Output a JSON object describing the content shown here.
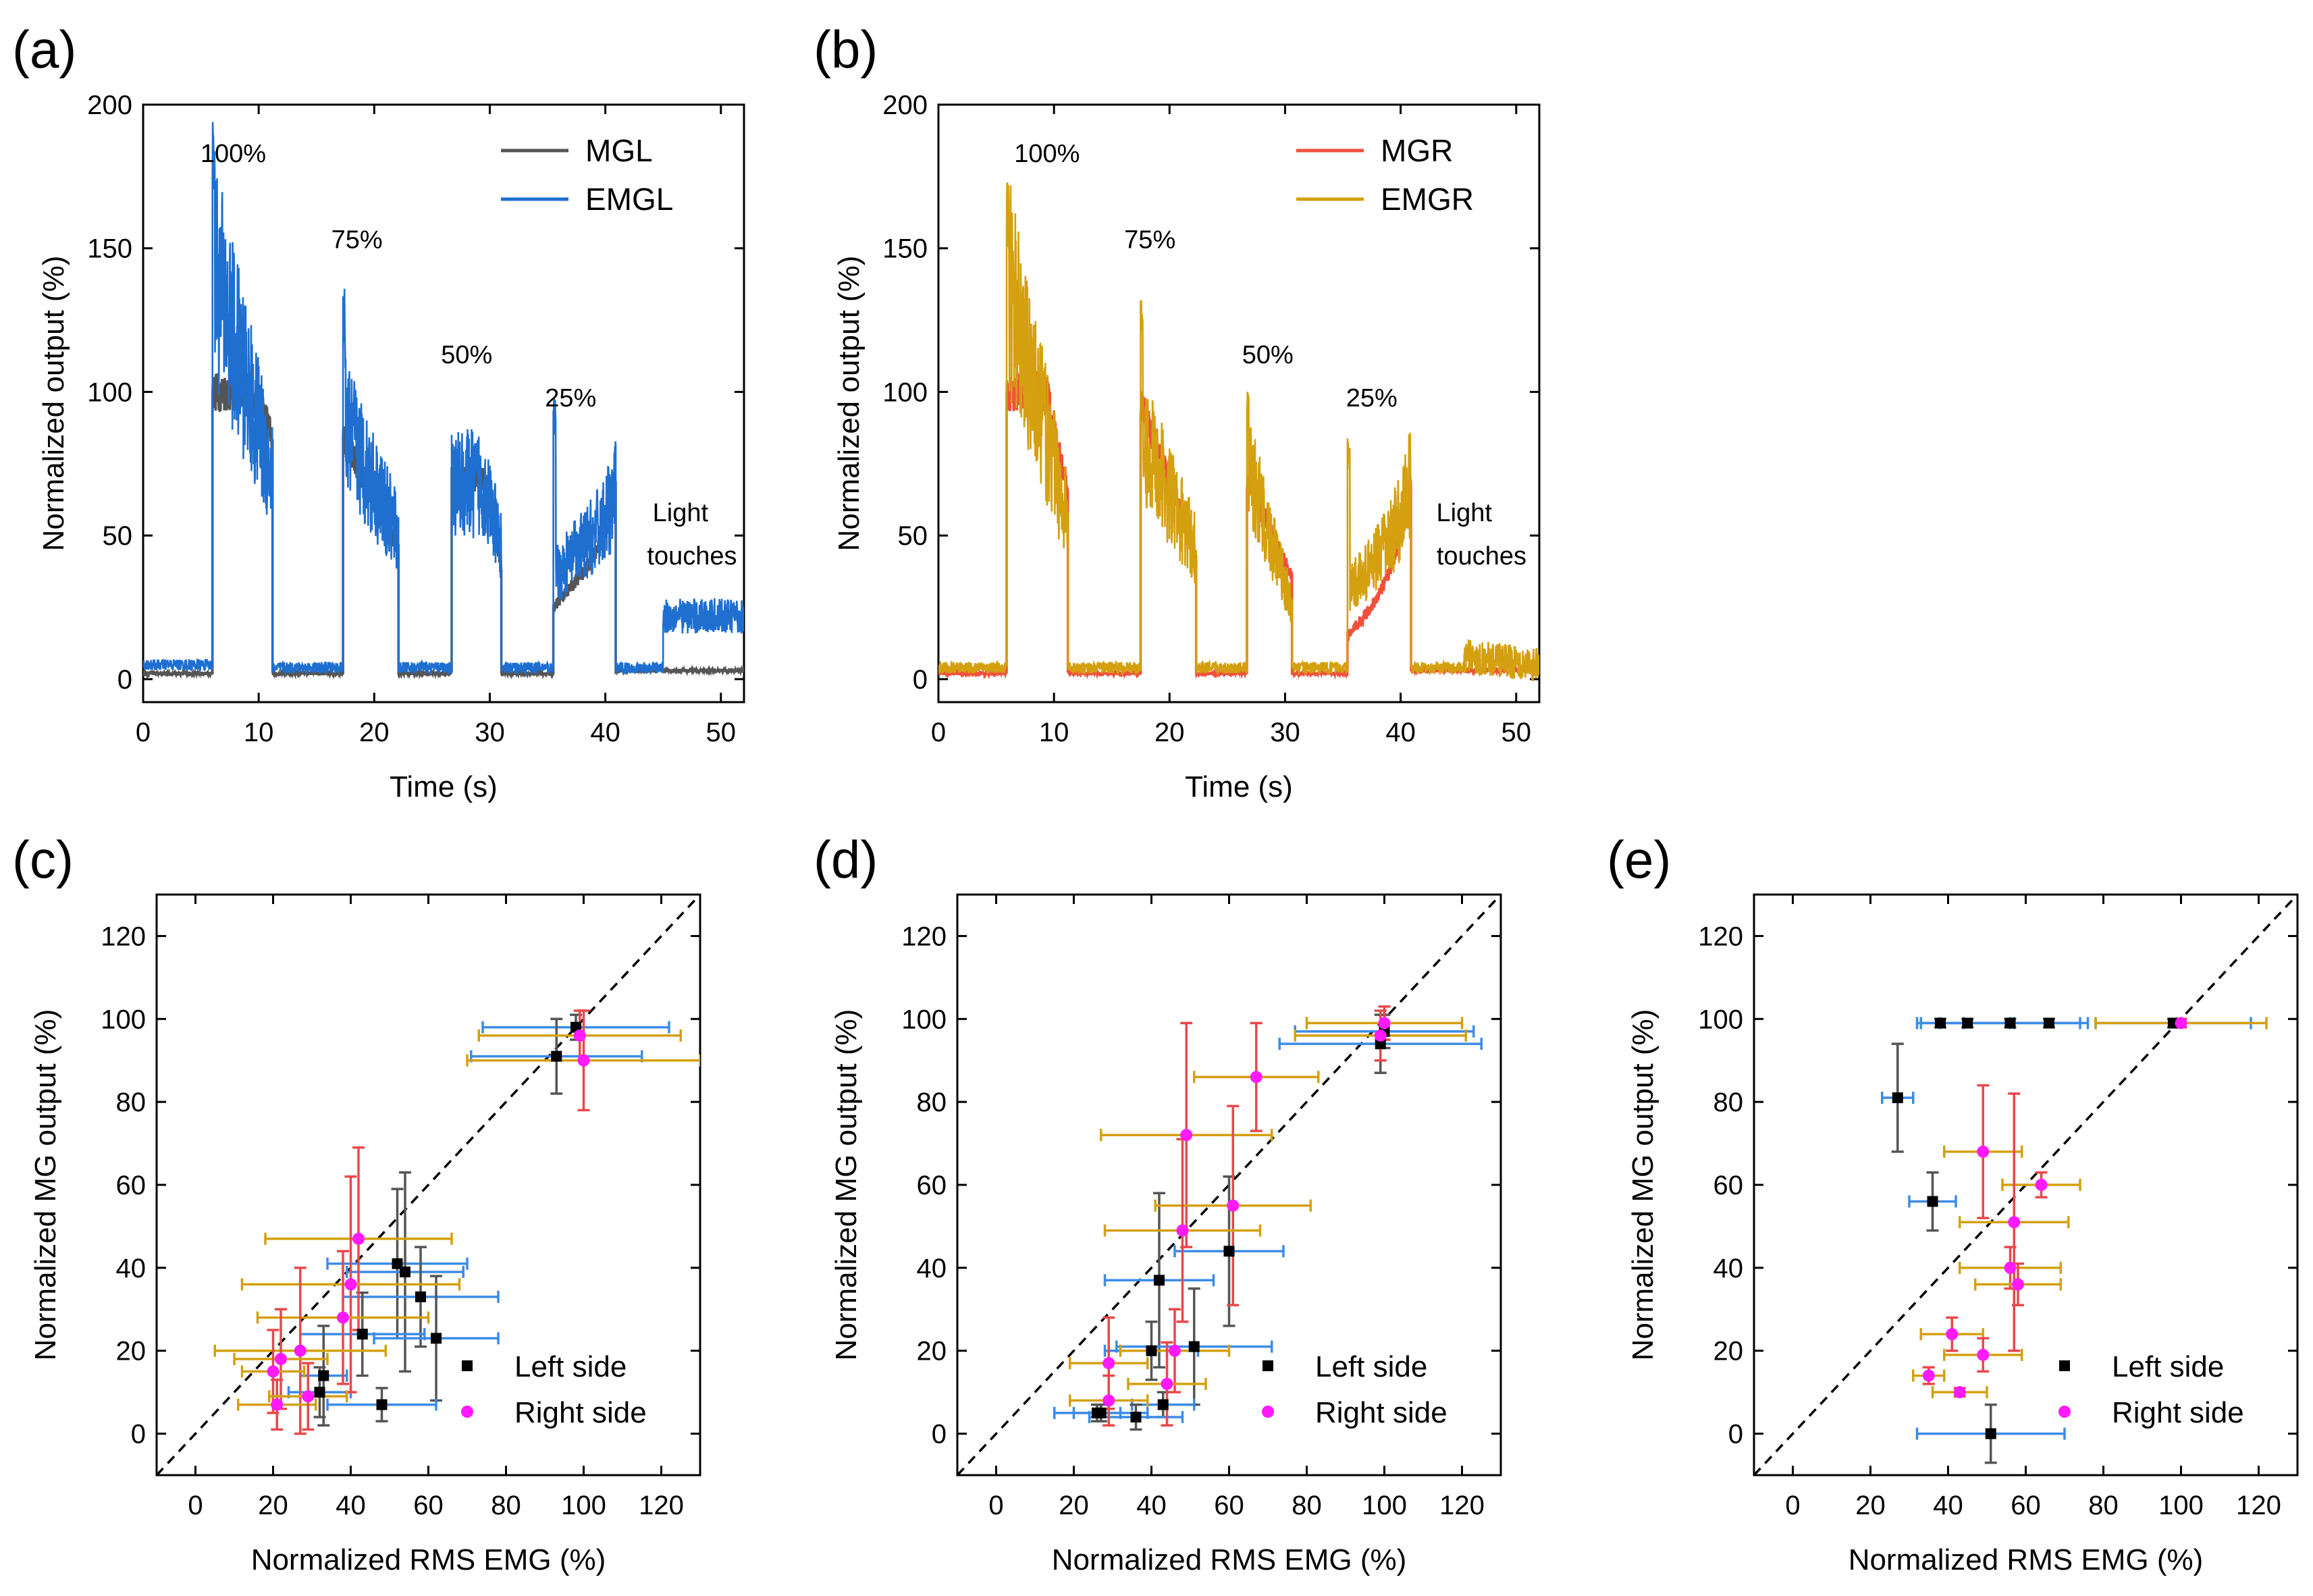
{
  "chart_data": [
    {
      "id": "a",
      "panel_label": "(a)",
      "type": "line",
      "xlabel": "Time (s)",
      "ylabel": "Normalized output (%)",
      "xlim": [
        0,
        52
      ],
      "ylim": [
        -8,
        200
      ],
      "xticks": [
        0,
        10,
        20,
        30,
        40,
        50
      ],
      "yticks": [
        0,
        50,
        100,
        150,
        200
      ],
      "legend_position": "top-right",
      "series": [
        {
          "name": "MGL",
          "color": "#555555",
          "segments": [
            {
              "t0": 0,
              "t1": 6,
              "level": 2
            },
            {
              "t0": 6,
              "t1": 11.2,
              "level": 100,
              "shape": "plateau",
              "end": 85
            },
            {
              "t0": 11.2,
              "t1": 17.3,
              "level": 2
            },
            {
              "t0": 17.3,
              "t1": 22.1,
              "level": 85,
              "shape": "decay",
              "end": 45
            },
            {
              "t0": 22.1,
              "t1": 26.7,
              "level": 2
            },
            {
              "t0": 26.7,
              "t1": 31,
              "level": 70,
              "shape": "plateau",
              "end": 40
            },
            {
              "t0": 31,
              "t1": 35.5,
              "level": 2
            },
            {
              "t0": 35.5,
              "t1": 40.9,
              "level": 25,
              "shape": "bowl",
              "end": 65
            },
            {
              "t0": 40.9,
              "t1": 52,
              "level": 3
            }
          ]
        },
        {
          "name": "EMGL",
          "color": "#1f6fd1",
          "segments": [
            {
              "t0": 0,
              "t1": 6,
              "level": 5
            },
            {
              "t0": 6,
              "t1": 11.2,
              "level": 145,
              "shape": "decay",
              "end": 70,
              "peak": 200
            },
            {
              "t0": 11.2,
              "t1": 17.3,
              "level": 4
            },
            {
              "t0": 17.3,
              "t1": 22.1,
              "level": 90,
              "shape": "decay",
              "end": 50,
              "peak": 136
            },
            {
              "t0": 22.1,
              "t1": 26.7,
              "level": 4
            },
            {
              "t0": 26.7,
              "t1": 31,
              "level": 68,
              "shape": "plateau",
              "end": 45
            },
            {
              "t0": 31,
              "t1": 35.5,
              "level": 4
            },
            {
              "t0": 35.5,
              "t1": 40.9,
              "level": 35,
              "shape": "bowl",
              "end": 65,
              "peak": 98
            },
            {
              "t0": 40.9,
              "t1": 45,
              "level": 4
            },
            {
              "t0": 45,
              "t1": 52,
              "level": 22,
              "shape": "noisy",
              "end": 22
            }
          ]
        }
      ],
      "annotations": [
        {
          "text": "100%",
          "x": 7.8,
          "y": 180
        },
        {
          "text": "75%",
          "x": 18.5,
          "y": 150
        },
        {
          "text": "50%",
          "x": 28,
          "y": 110
        },
        {
          "text": "25%",
          "x": 37,
          "y": 95
        },
        {
          "text": "Light",
          "x": 46.5,
          "y": 55
        },
        {
          "text": "touches",
          "x": 47.5,
          "y": 40
        }
      ]
    },
    {
      "id": "b",
      "panel_label": "(b)",
      "type": "line",
      "xlabel": "Time (s)",
      "ylabel": "Normalized output (%)",
      "xlim": [
        0,
        52
      ],
      "ylim": [
        -8,
        200
      ],
      "xticks": [
        0,
        10,
        20,
        30,
        40,
        50
      ],
      "yticks": [
        0,
        50,
        100,
        150,
        200
      ],
      "legend_position": "top-right",
      "series": [
        {
          "name": "MGR",
          "color": "#f0503c",
          "segments": [
            {
              "t0": 0,
              "t1": 5.9,
              "level": 2
            },
            {
              "t0": 5.9,
              "t1": 11.2,
              "level": 100,
              "shape": "plateau",
              "end": 65
            },
            {
              "t0": 11.2,
              "t1": 17.5,
              "level": 2
            },
            {
              "t0": 17.5,
              "t1": 22.3,
              "level": 95,
              "shape": "decay",
              "end": 45
            },
            {
              "t0": 22.3,
              "t1": 26.7,
              "level": 2
            },
            {
              "t0": 26.7,
              "t1": 30.6,
              "level": 70,
              "shape": "decay",
              "end": 35
            },
            {
              "t0": 30.6,
              "t1": 35.4,
              "level": 2
            },
            {
              "t0": 35.4,
              "t1": 40.9,
              "level": 15,
              "shape": "bowl",
              "end": 70
            },
            {
              "t0": 40.9,
              "t1": 52,
              "level": 3
            }
          ]
        },
        {
          "name": "EMGR",
          "color": "#d4a010",
          "segments": [
            {
              "t0": 0,
              "t1": 5.9,
              "level": 4
            },
            {
              "t0": 5.9,
              "t1": 11.2,
              "level": 140,
              "shape": "decay",
              "end": 55,
              "peak": 175
            },
            {
              "t0": 11.2,
              "t1": 17.5,
              "level": 4
            },
            {
              "t0": 17.5,
              "t1": 22.3,
              "level": 85,
              "shape": "decay",
              "end": 45,
              "peak": 141
            },
            {
              "t0": 22.3,
              "t1": 26.7,
              "level": 4
            },
            {
              "t0": 26.7,
              "t1": 30.6,
              "level": 75,
              "shape": "decay",
              "end": 25,
              "peak": 103
            },
            {
              "t0": 30.6,
              "t1": 35.4,
              "level": 4
            },
            {
              "t0": 35.4,
              "t1": 40.9,
              "level": 30,
              "shape": "bowl",
              "end": 70,
              "peak": 84
            },
            {
              "t0": 40.9,
              "t1": 45.5,
              "level": 4
            },
            {
              "t0": 45.5,
              "t1": 52,
              "level": 8,
              "shape": "noisy",
              "end": 5
            }
          ]
        }
      ],
      "annotations": [
        {
          "text": "100%",
          "x": 9.4,
          "y": 180
        },
        {
          "text": "75%",
          "x": 18.3,
          "y": 150
        },
        {
          "text": "50%",
          "x": 28.5,
          "y": 110
        },
        {
          "text": "25%",
          "x": 37.5,
          "y": 95
        },
        {
          "text": "Light",
          "x": 45.5,
          "y": 55
        },
        {
          "text": "touches",
          "x": 47,
          "y": 40
        }
      ]
    },
    {
      "id": "c",
      "panel_label": "(c)",
      "type": "scatter",
      "xlabel": "Normalized RMS EMG (%)",
      "ylabel": "Normalized MG output (%)",
      "xlim": [
        -10,
        130
      ],
      "ylim": [
        -10,
        130
      ],
      "xticks": [
        0,
        20,
        40,
        60,
        80,
        100,
        120
      ],
      "yticks": [
        0,
        20,
        40,
        60,
        80,
        100,
        120
      ],
      "identity_line": true,
      "legend_position": "bottom-right",
      "series": [
        {
          "name": "Left side",
          "color": "#000000",
          "marker": "square",
          "ecolor": "#555555",
          "xecolor": "#3c8ce6",
          "points": [
            {
              "x": 98,
              "y": 98,
              "xerr": 24,
              "yerr": 3
            },
            {
              "x": 93,
              "y": 91,
              "xerr": 22,
              "yerr": 9
            },
            {
              "x": 52,
              "y": 41,
              "xerr": 18,
              "yerr": 18
            },
            {
              "x": 54,
              "y": 39,
              "xerr": 15,
              "yerr": 24
            },
            {
              "x": 58,
              "y": 33,
              "xerr": 20,
              "yerr": 12
            },
            {
              "x": 62,
              "y": 23,
              "xerr": 16,
              "yerr": 15
            },
            {
              "x": 43,
              "y": 24,
              "xerr": 16,
              "yerr": 10
            },
            {
              "x": 33,
              "y": 14,
              "xerr": 6,
              "yerr": 12
            },
            {
              "x": 32,
              "y": 10,
              "xerr": 8,
              "yerr": 6
            },
            {
              "x": 48,
              "y": 7,
              "xerr": 14,
              "yerr": 4
            }
          ]
        },
        {
          "name": "Right side",
          "color": "#ff1aff",
          "marker": "circle",
          "ecolor": "#e8484c",
          "xecolor": "#d4a010",
          "points": [
            {
              "x": 99,
              "y": 96,
              "xerr": 26,
              "yerr": 6
            },
            {
              "x": 100,
              "y": 90,
              "xerr": 30,
              "yerr": 12
            },
            {
              "x": 42,
              "y": 47,
              "xerr": 24,
              "yerr": 22
            },
            {
              "x": 40,
              "y": 36,
              "xerr": 28,
              "yerr": 26
            },
            {
              "x": 38,
              "y": 28,
              "xerr": 22,
              "yerr": 16
            },
            {
              "x": 27,
              "y": 20,
              "xerr": 22,
              "yerr": 20
            },
            {
              "x": 22,
              "y": 18,
              "xerr": 12,
              "yerr": 12
            },
            {
              "x": 20,
              "y": 15,
              "xerr": 8,
              "yerr": 10
            },
            {
              "x": 21,
              "y": 7,
              "xerr": 10,
              "yerr": 6
            },
            {
              "x": 29,
              "y": 9,
              "xerr": 10,
              "yerr": 8
            }
          ]
        }
      ]
    },
    {
      "id": "d",
      "panel_label": "(d)",
      "type": "scatter",
      "xlabel": "Normalized RMS EMG (%)",
      "ylabel": "Normalized MG output (%)",
      "xlim": [
        -10,
        130
      ],
      "ylim": [
        -10,
        130
      ],
      "xticks": [
        0,
        20,
        40,
        60,
        80,
        100,
        120
      ],
      "yticks": [
        0,
        20,
        40,
        60,
        80,
        100,
        120
      ],
      "identity_line": true,
      "legend_position": "bottom-right",
      "series": [
        {
          "name": "Left side",
          "color": "#000000",
          "marker": "square",
          "ecolor": "#555555",
          "xecolor": "#3c8ce6",
          "points": [
            {
              "x": 100,
              "y": 97,
              "xerr": 23,
              "yerr": 4
            },
            {
              "x": 99,
              "y": 94,
              "xerr": 26,
              "yerr": 7
            },
            {
              "x": 60,
              "y": 44,
              "xerr": 14,
              "yerr": 18
            },
            {
              "x": 42,
              "y": 37,
              "xerr": 14,
              "yerr": 21
            },
            {
              "x": 40,
              "y": 20,
              "xerr": 12,
              "yerr": 7
            },
            {
              "x": 51,
              "y": 21,
              "xerr": 20,
              "yerr": 14
            },
            {
              "x": 43,
              "y": 7,
              "xerr": 8,
              "yerr": 3
            },
            {
              "x": 26,
              "y": 5,
              "xerr": 6,
              "yerr": 2
            },
            {
              "x": 36,
              "y": 4,
              "xerr": 12,
              "yerr": 3
            },
            {
              "x": 27,
              "y": 5,
              "xerr": 12,
              "yerr": 2
            }
          ]
        },
        {
          "name": "Right side",
          "color": "#ff1aff",
          "marker": "circle",
          "ecolor": "#e8484c",
          "xecolor": "#d4a010",
          "points": [
            {
              "x": 100,
              "y": 99,
              "xerr": 20,
              "yerr": 4
            },
            {
              "x": 99,
              "y": 96,
              "xerr": 22,
              "yerr": 6
            },
            {
              "x": 67,
              "y": 86,
              "xerr": 16,
              "yerr": 13
            },
            {
              "x": 49,
              "y": 72,
              "xerr": 22,
              "yerr": 27
            },
            {
              "x": 61,
              "y": 55,
              "xerr": 20,
              "yerr": 24
            },
            {
              "x": 48,
              "y": 49,
              "xerr": 20,
              "yerr": 22
            },
            {
              "x": 46,
              "y": 20,
              "xerr": 14,
              "yerr": 10
            },
            {
              "x": 29,
              "y": 17,
              "xerr": 10,
              "yerr": 11
            },
            {
              "x": 44,
              "y": 12,
              "xerr": 10,
              "yerr": 10
            },
            {
              "x": 29,
              "y": 8,
              "xerr": 10,
              "yerr": 6
            }
          ]
        }
      ]
    },
    {
      "id": "e",
      "panel_label": "(e)",
      "type": "scatter",
      "xlabel": "Normalized RMS EMG (%)",
      "ylabel": "Normalized MG output (%)",
      "xlim": [
        -10,
        130
      ],
      "ylim": [
        -10,
        130
      ],
      "xticks": [
        0,
        20,
        40,
        60,
        80,
        100,
        120
      ],
      "yticks": [
        0,
        20,
        40,
        60,
        80,
        100,
        120
      ],
      "identity_line": true,
      "legend_position": "bottom-right",
      "series": [
        {
          "name": "Left side",
          "color": "#000000",
          "marker": "square",
          "ecolor": "#555555",
          "xecolor": "#3c8ce6",
          "points": [
            {
              "x": 38,
              "y": 99,
              "xerr": 6,
              "yerr": 1
            },
            {
              "x": 45,
              "y": 99,
              "xerr": 12,
              "yerr": 1
            },
            {
              "x": 56,
              "y": 99,
              "xerr": 18,
              "yerr": 1
            },
            {
              "x": 66,
              "y": 99,
              "xerr": 10,
              "yerr": 1
            },
            {
              "x": 98,
              "y": 99,
              "xerr": 20,
              "yerr": 1
            },
            {
              "x": 27,
              "y": 81,
              "xerr": 4,
              "yerr": 13
            },
            {
              "x": 36,
              "y": 56,
              "xerr": 6,
              "yerr": 7
            },
            {
              "x": 51,
              "y": 0,
              "xerr": 19,
              "yerr": 7
            }
          ]
        },
        {
          "name": "Right side",
          "color": "#ff1aff",
          "marker": "circle",
          "ecolor": "#e8484c",
          "xecolor": "#d4a010",
          "points": [
            {
              "x": 100,
              "y": 99,
              "xerr": 22,
              "yerr": 1
            },
            {
              "x": 49,
              "y": 68,
              "xerr": 10,
              "yerr": 16
            },
            {
              "x": 64,
              "y": 60,
              "xerr": 10,
              "yerr": 3
            },
            {
              "x": 57,
              "y": 51,
              "xerr": 14,
              "yerr": 31
            },
            {
              "x": 56,
              "y": 40,
              "xerr": 13,
              "yerr": 5
            },
            {
              "x": 58,
              "y": 36,
              "xerr": 11,
              "yerr": 5
            },
            {
              "x": 41,
              "y": 24,
              "xerr": 8,
              "yerr": 4
            },
            {
              "x": 49,
              "y": 19,
              "xerr": 10,
              "yerr": 4
            },
            {
              "x": 35,
              "y": 14,
              "xerr": 4,
              "yerr": 2
            },
            {
              "x": 43,
              "y": 10,
              "xerr": 7,
              "yerr": 1
            }
          ]
        }
      ]
    }
  ]
}
